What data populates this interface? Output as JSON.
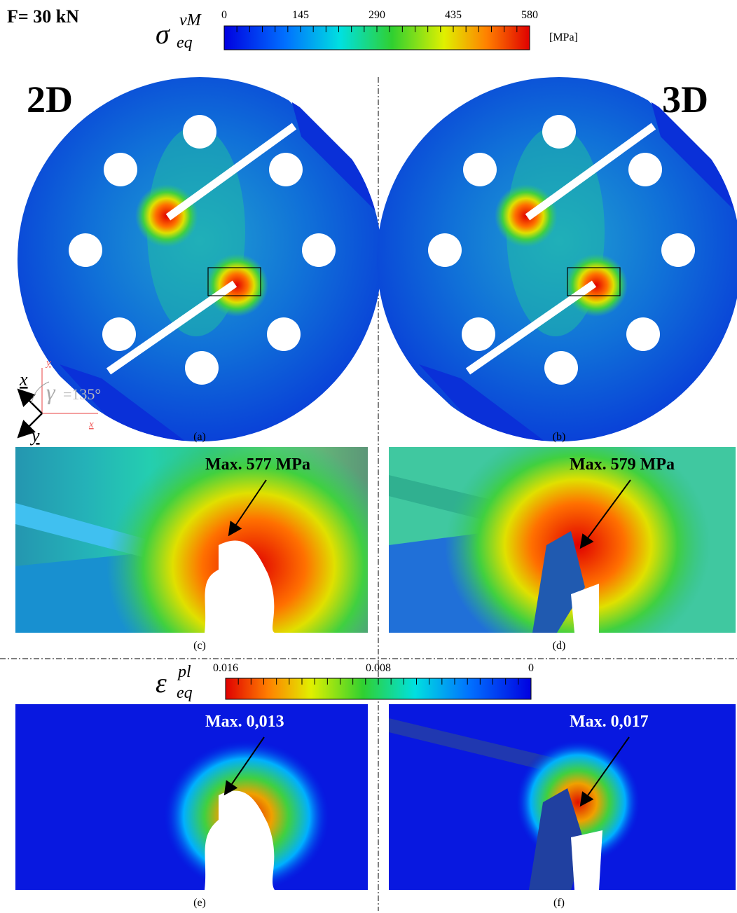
{
  "header": {
    "load": "F= 30 kN"
  },
  "stress_scale": {
    "symbol": "σ",
    "superscript": "vM",
    "subscript": "eq",
    "ticks": [
      "0",
      "145",
      "290",
      "435",
      "580"
    ],
    "unit": "[MPa]"
  },
  "strain_scale": {
    "symbol": "ε",
    "superscript": "pl",
    "subscript": "eq",
    "ticks": [
      "0.016",
      "0.008",
      "0"
    ]
  },
  "panels": {
    "a": {
      "label": "(a)",
      "title": "2D"
    },
    "b": {
      "label": "(b)",
      "title": "3D"
    },
    "c": {
      "label": "(c)",
      "annotation": "Max. 577 MPa"
    },
    "d": {
      "label": "(d)",
      "annotation": "Max. 579 MPa"
    },
    "e": {
      "label": "(e)",
      "annotation": "Max. 0,013"
    },
    "f": {
      "label": "(f)",
      "annotation": "Max. 0,017"
    }
  },
  "axes": {
    "x": "x",
    "y": "y",
    "x0": "x",
    "y0": "y",
    "angle": "γ",
    "angle_value": "=135°"
  }
}
